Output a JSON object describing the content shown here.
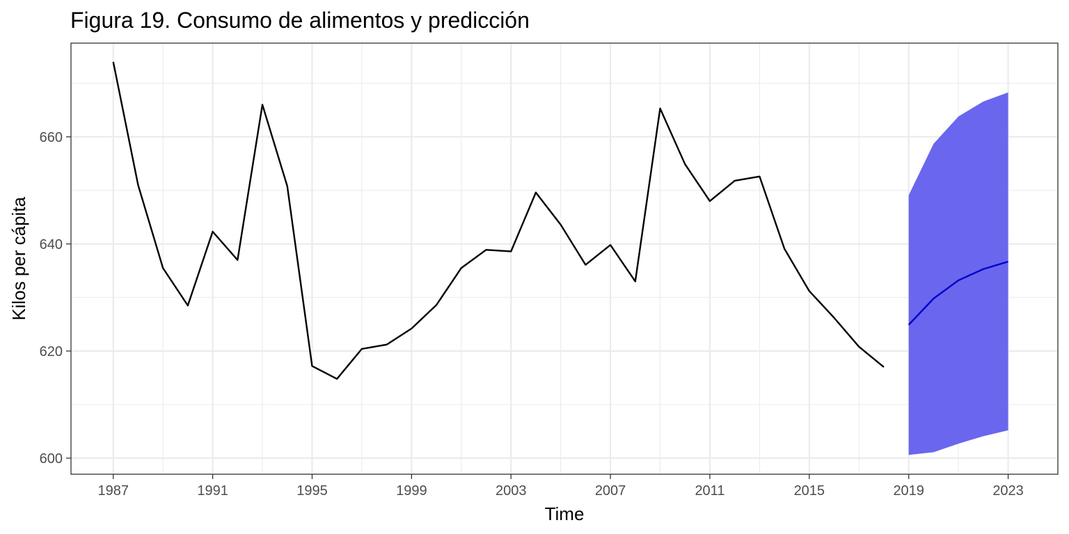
{
  "chart_data": {
    "type": "line",
    "title": "Figura 19. Consumo de alimentos y predicción",
    "xlabel": "Time",
    "ylabel": "Kilos per cápita",
    "xlim": [
      1985.3,
      2025.0
    ],
    "ylim": [
      597,
      677.5
    ],
    "x_ticks": [
      "1987",
      "1991",
      "1995",
      "1999",
      "2003",
      "2007",
      "2011",
      "2015",
      "2019",
      "2023"
    ],
    "y_ticks": [
      "600",
      "620",
      "640",
      "660"
    ],
    "grid": true,
    "colors": {
      "series": "#000000",
      "forecast": "#0000CC",
      "interval": "#6B66EE",
      "grid": "#EBEBEB",
      "panel_border": "#333333"
    },
    "series": [
      {
        "x": [
          1987,
          1988,
          1989,
          1990,
          1991,
          1992,
          1993,
          1994,
          1995,
          1996,
          1997,
          1998,
          1999,
          2000,
          2001,
          2002,
          2003,
          2004,
          2005,
          2006,
          2007,
          2008,
          2009,
          2010,
          2011,
          2012,
          2013,
          2014,
          2015,
          2016,
          2017,
          2018
        ],
        "values": [
          674,
          651,
          635.5,
          628.5,
          642.3,
          637,
          666,
          650.8,
          617.2,
          614.8,
          620.4,
          621.2,
          624.2,
          628.6,
          635.5,
          638.9,
          638.6,
          649.6,
          643.6,
          636.1,
          639.8,
          633,
          665.3,
          654.9,
          648,
          651.8,
          652.6,
          639.1,
          631.2,
          626.2,
          620.8,
          617
        ]
      }
    ],
    "forecast": {
      "x": [
        2019,
        2020,
        2021,
        2022,
        2023
      ],
      "mean": [
        624.9,
        629.8,
        633.2,
        635.3,
        636.7
      ],
      "lower": [
        600.6,
        601.1,
        602.7,
        604.1,
        605.2
      ],
      "upper": [
        649.1,
        658.7,
        663.8,
        666.6,
        668.3
      ]
    }
  }
}
